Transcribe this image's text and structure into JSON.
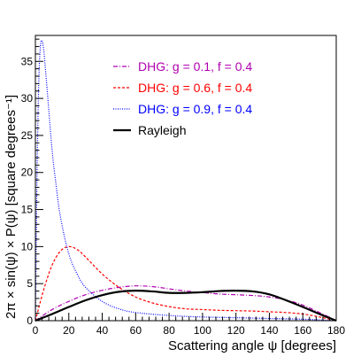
{
  "chart_data": {
    "type": "line",
    "title": "",
    "xlabel": "Scattering angle ψ [degrees]",
    "ylabel": "2π × sin(ψ) × P(ψ) [square degrees⁻¹]",
    "xlim": [
      0,
      180
    ],
    "ylim": [
      0,
      38.5
    ],
    "x_ticks": [
      0,
      20,
      40,
      60,
      80,
      100,
      120,
      140,
      160,
      180
    ],
    "y_ticks": [
      0,
      5,
      10,
      15,
      20,
      25,
      30,
      35
    ],
    "grid": false,
    "legend_position": "top-right",
    "series": [
      {
        "name": "DHG: g = 0.1, f = 0.4",
        "color": "#b000b0",
        "style": "dashdot",
        "x": [
          0,
          10,
          20,
          30,
          40,
          50,
          60,
          70,
          80,
          90,
          100,
          110,
          120,
          130,
          140,
          150,
          160,
          170,
          180
        ],
        "y": [
          0,
          1.5,
          2.6,
          3.5,
          4.1,
          4.5,
          4.7,
          4.6,
          4.3,
          4.0,
          3.8,
          3.6,
          3.5,
          3.4,
          3.2,
          2.8,
          2.1,
          1.1,
          0
        ]
      },
      {
        "name": "DHG: g = 0.6, f = 0.4",
        "color": "#ff0000",
        "style": "dashed",
        "x": [
          0,
          5,
          10,
          15,
          20,
          25,
          30,
          40,
          50,
          60,
          70,
          80,
          90,
          100,
          110,
          120,
          130,
          140,
          150,
          160,
          170,
          180
        ],
        "y": [
          0,
          4.2,
          7.5,
          9.4,
          10.0,
          9.6,
          8.6,
          6.3,
          4.5,
          3.2,
          2.4,
          1.9,
          1.6,
          1.5,
          1.4,
          1.35,
          1.3,
          1.2,
          1.1,
          0.9,
          0.5,
          0
        ]
      },
      {
        "name": "DHG: g = 0.9, f = 0.4",
        "color": "#0000ff",
        "style": "dotted",
        "x": [
          0,
          1,
          2,
          3,
          4,
          5,
          6,
          8,
          10,
          12,
          15,
          20,
          25,
          30,
          40,
          50,
          60,
          80,
          100,
          120,
          140,
          160,
          180
        ],
        "y": [
          0,
          20,
          32,
          37,
          37.8,
          36.5,
          34,
          28.5,
          23,
          19,
          14,
          9,
          6.3,
          4.5,
          2.6,
          1.6,
          1.1,
          0.7,
          0.5,
          0.4,
          0.3,
          0.2,
          0
        ]
      },
      {
        "name": "Rayleigh",
        "color": "#000000",
        "style": "solid",
        "x": [
          0,
          10,
          20,
          30,
          40,
          50,
          60,
          70,
          80,
          90,
          100,
          110,
          120,
          130,
          140,
          150,
          160,
          170,
          180
        ],
        "y": [
          0,
          0.9,
          1.85,
          2.75,
          3.45,
          3.9,
          4.05,
          3.95,
          3.75,
          3.75,
          3.85,
          4.0,
          4.05,
          3.95,
          3.55,
          2.75,
          1.85,
          0.9,
          0
        ]
      }
    ]
  }
}
